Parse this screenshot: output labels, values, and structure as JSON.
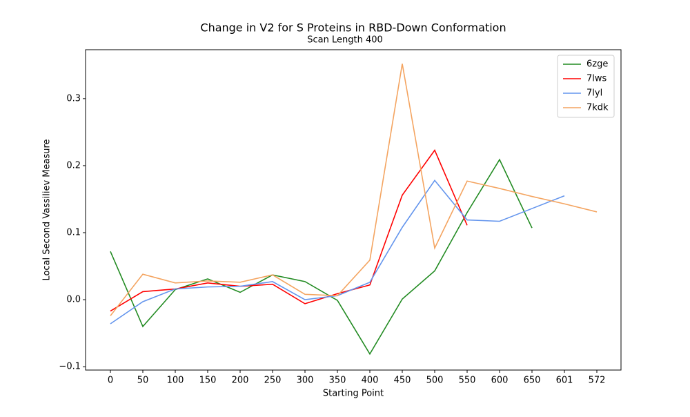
{
  "chart_data": {
    "type": "line",
    "title": "Change in V2 for S Proteins in RBD-Down Conformation",
    "subtitle": "Scan Length 400",
    "x_label": "Starting Point",
    "y_label": "Local Second Vassiliev Measure",
    "categories": [
      "0",
      "50",
      "100",
      "150",
      "200",
      "250",
      "300",
      "350",
      "400",
      "450",
      "500",
      "550",
      "600",
      "650",
      "601",
      "572"
    ],
    "series": [
      {
        "name": "6zge",
        "color": "#228b22",
        "values": [
          0.072,
          -0.04,
          0.015,
          0.031,
          0.011,
          0.037,
          0.027,
          -0.001,
          -0.081,
          0.001,
          0.043,
          0.13,
          0.209,
          0.107,
          null,
          null
        ]
      },
      {
        "name": "7lws",
        "color": "#ff0000",
        "values": [
          -0.017,
          0.012,
          0.016,
          0.025,
          0.02,
          0.023,
          -0.006,
          0.009,
          0.022,
          0.156,
          0.223,
          0.111,
          null,
          null,
          null,
          null
        ]
      },
      {
        "name": "7lyl",
        "color": "#6495ed",
        "values": [
          -0.036,
          -0.003,
          0.016,
          0.019,
          0.02,
          0.027,
          0.0,
          0.006,
          0.026,
          0.108,
          0.178,
          0.119,
          0.117,
          0.136,
          0.155,
          null
        ]
      },
      {
        "name": "7kdk",
        "color": "#f4a460",
        "values": [
          -0.024,
          0.038,
          0.025,
          0.028,
          0.026,
          0.037,
          0.008,
          0.006,
          0.059,
          0.352,
          0.077,
          0.177,
          0.166,
          0.154,
          0.143,
          0.131
        ]
      }
    ],
    "ylim": [
      -0.105,
      0.373
    ],
    "yticks": [
      {
        "value": -0.1,
        "label": "−0.1"
      },
      {
        "value": 0,
        "label": "0.0"
      },
      0.1,
      0.2,
      0.3
    ],
    "legend": "upper right"
  }
}
